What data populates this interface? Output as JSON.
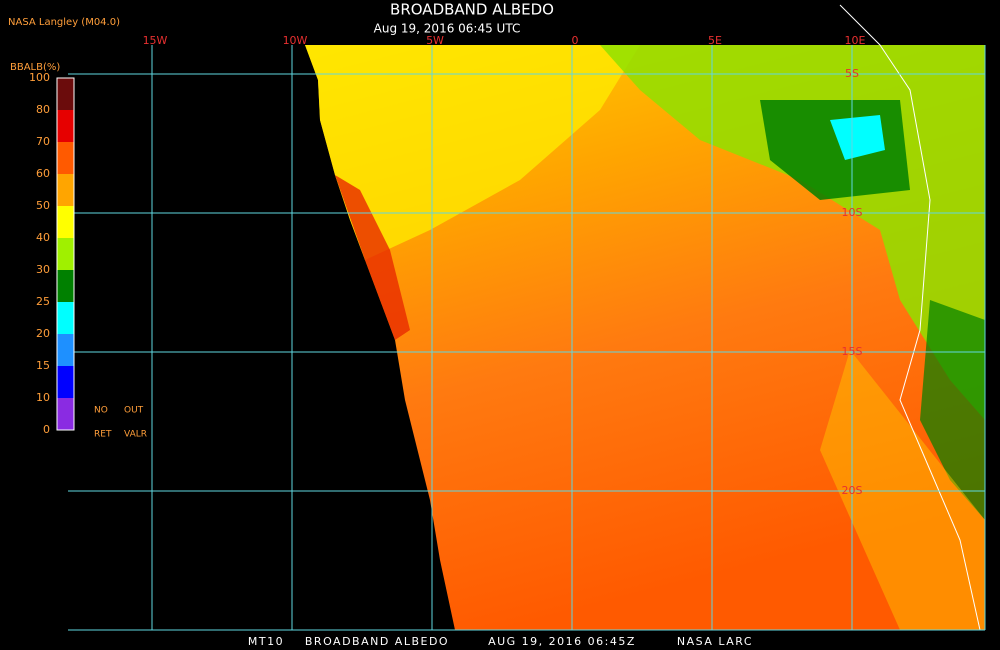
{
  "header": {
    "title": "BROADBAND ALBEDO",
    "subtitle": "Aug 19, 2016 06:45 UTC",
    "source": "NASA Langley (M04.0)"
  },
  "legend": {
    "title": "BBALB(%)",
    "ticks": [
      "100",
      "80",
      "70",
      "60",
      "50",
      "40",
      "30",
      "25",
      "20",
      "15",
      "10",
      "0"
    ],
    "colors": [
      "#6b0c0c",
      "#e60000",
      "#ff5a00",
      "#ffa500",
      "#ffff00",
      "#a0f000",
      "#008000",
      "#00ffff",
      "#1e90ff",
      "#0000ff",
      "#8a2be2"
    ],
    "notes": [
      "NO",
      "OUT",
      "RET",
      "VALR"
    ]
  },
  "grid": {
    "longitudes": [
      "15W",
      "10W",
      "5W",
      "0",
      "5E",
      "10E"
    ],
    "latitudes": [
      "5S",
      "10S",
      "15S",
      "20S"
    ]
  },
  "footer": [
    "MT10",
    "BROADBAND ALBEDO",
    "AUG 19, 2016 06:45Z",
    "NASA LARC"
  ]
}
